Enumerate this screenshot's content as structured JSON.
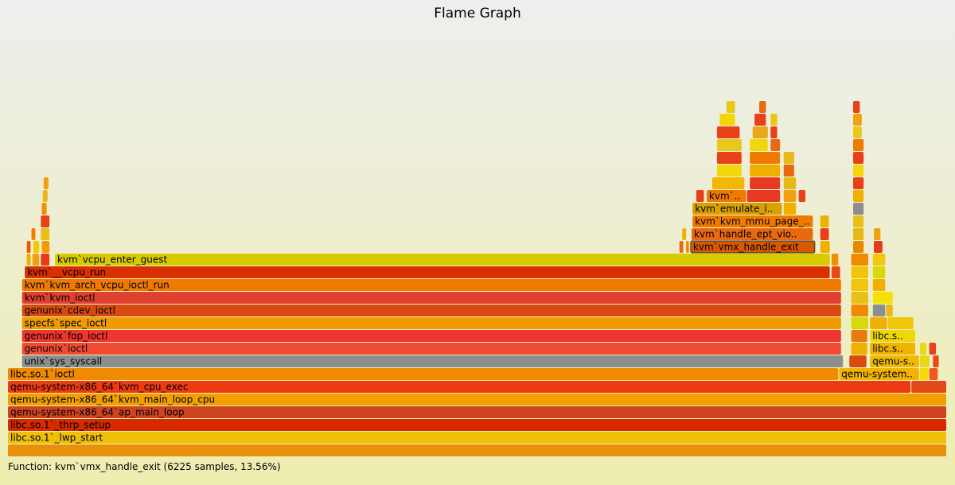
{
  "title": "Flame Graph",
  "details": "Function: kvm`vmx_handle_exit (6225 samples, 13.56%)",
  "chart_data": {
    "type": "flamegraph",
    "title": "Flame Graph",
    "total_samples": 45900,
    "highlighted": "kvm`vmx_handle_exit",
    "frames": [
      {
        "label": "",
        "start": 0.0,
        "end": 1.0,
        "depth": 0,
        "color": "#e8900a"
      },
      {
        "label": "libc.so.1`_lwp_start",
        "start": 0.0,
        "end": 1.0,
        "depth": 1,
        "color": "#edc00a"
      },
      {
        "label": "libc.so.1`_thrp_setup",
        "start": 0.0,
        "end": 1.0,
        "depth": 2,
        "color": "#d82a00"
      },
      {
        "label": "qemu-system-x86_64`ap_main_loop",
        "start": 0.0,
        "end": 1.0,
        "depth": 3,
        "color": "#cc4420"
      },
      {
        "label": "qemu-system-x86_64`kvm_main_loop_cpu",
        "start": 0.0,
        "end": 1.0,
        "depth": 4,
        "color": "#f2a000"
      },
      {
        "label": "qemu-system-x86_64`kvm_cpu_exec",
        "start": 0.0,
        "end": 0.962,
        "depth": 5,
        "color": "#ee3a10"
      },
      {
        "label": "",
        "start": 0.962,
        "end": 1.0,
        "depth": 5,
        "color": "#e24818"
      },
      {
        "label": "libc.so.1`ioctl",
        "start": 0.0,
        "end": 0.885,
        "depth": 6,
        "color": "#f08a00"
      },
      {
        "label": "qemu-system..",
        "start": 0.885,
        "end": 0.971,
        "depth": 6,
        "color": "#f0b400"
      },
      {
        "label": "",
        "start": 0.971,
        "end": 0.981,
        "depth": 6,
        "color": "#f5da0a"
      },
      {
        "label": "",
        "start": 0.981,
        "end": 0.991,
        "depth": 6,
        "color": "#f05a20"
      },
      {
        "label": "unix`sys_syscall",
        "start": 0.015,
        "end": 0.89,
        "depth": 7,
        "color": "#8e8e8e"
      },
      {
        "label": "",
        "start": 0.896,
        "end": 0.915,
        "depth": 7,
        "color": "#d84a10"
      },
      {
        "label": "qemu-sy..",
        "start": 0.918,
        "end": 0.971,
        "depth": 7,
        "color": "#f0b800"
      },
      {
        "label": "",
        "start": 0.971,
        "end": 0.982,
        "depth": 7,
        "color": "#e8d818"
      },
      {
        "label": "",
        "start": 0.985,
        "end": 0.992,
        "depth": 7,
        "color": "#e84a18"
      },
      {
        "label": "genunix`ioctl",
        "start": 0.015,
        "end": 0.888,
        "depth": 8,
        "color": "#f04a34"
      },
      {
        "label": "",
        "start": 0.898,
        "end": 0.916,
        "depth": 8,
        "color": "#f0b000"
      },
      {
        "label": "libc.s..",
        "start": 0.918,
        "end": 0.967,
        "depth": 8,
        "color": "#f0b400"
      },
      {
        "label": "",
        "start": 0.971,
        "end": 0.979,
        "depth": 8,
        "color": "#e8d818"
      },
      {
        "label": "",
        "start": 0.981,
        "end": 0.989,
        "depth": 8,
        "color": "#e84018"
      },
      {
        "label": "genunix`fop_ioctl",
        "start": 0.015,
        "end": 0.888,
        "depth": 9,
        "color": "#ee3530"
      },
      {
        "label": "",
        "start": 0.898,
        "end": 0.916,
        "depth": 9,
        "color": "#e87a10"
      },
      {
        "label": "libc.s..",
        "start": 0.918,
        "end": 0.967,
        "depth": 9,
        "color": "#eed80a"
      },
      {
        "label": "specfs`spec_ioctl",
        "start": 0.015,
        "end": 0.888,
        "depth": 10,
        "color": "#f09c00"
      },
      {
        "label": "",
        "start": 0.898,
        "end": 0.917,
        "depth": 10,
        "color": "#d8d80a"
      },
      {
        "label": "",
        "start": 0.918,
        "end": 0.937,
        "depth": 10,
        "color": "#f0b000"
      },
      {
        "label": "",
        "start": 0.937,
        "end": 0.965,
        "depth": 10,
        "color": "#f2c40a"
      },
      {
        "label": "genunix`cdev_ioctl",
        "start": 0.015,
        "end": 0.888,
        "depth": 11,
        "color": "#d84a10"
      },
      {
        "label": "",
        "start": 0.898,
        "end": 0.917,
        "depth": 11,
        "color": "#f08a00"
      },
      {
        "label": "",
        "start": 0.921,
        "end": 0.935,
        "depth": 11,
        "color": "#8e8e8e"
      },
      {
        "label": "",
        "start": 0.935,
        "end": 0.943,
        "depth": 11,
        "color": "#e8b818"
      },
      {
        "label": "kvm`kvm_ioctl",
        "start": 0.015,
        "end": 0.888,
        "depth": 12,
        "color": "#e04030"
      },
      {
        "label": "",
        "start": 0.898,
        "end": 0.917,
        "depth": 12,
        "color": "#e8c018"
      },
      {
        "label": "",
        "start": 0.921,
        "end": 0.943,
        "depth": 12,
        "color": "#f5e00a"
      },
      {
        "label": "kvm`kvm_arch_vcpu_ioctl_run",
        "start": 0.015,
        "end": 0.888,
        "depth": 13,
        "color": "#f07a00"
      },
      {
        "label": "",
        "start": 0.898,
        "end": 0.917,
        "depth": 13,
        "color": "#f2c40a"
      },
      {
        "label": "",
        "start": 0.921,
        "end": 0.935,
        "depth": 13,
        "color": "#f0b000"
      },
      {
        "label": "kvm`__vcpu_run",
        "start": 0.018,
        "end": 0.876,
        "depth": 14,
        "color": "#d83000"
      },
      {
        "label": "",
        "start": 0.877,
        "end": 0.887,
        "depth": 14,
        "color": "#e84818"
      },
      {
        "label": "",
        "start": 0.898,
        "end": 0.917,
        "depth": 14,
        "color": "#f2c40a"
      },
      {
        "label": "",
        "start": 0.921,
        "end": 0.935,
        "depth": 14,
        "color": "#d8d80a"
      },
      {
        "label": "",
        "start": 0.02,
        "end": 0.025,
        "depth": 15,
        "color": "#f0b000"
      },
      {
        "label": "",
        "start": 0.026,
        "end": 0.034,
        "depth": 15,
        "color": "#f0a010"
      },
      {
        "label": "",
        "start": 0.035,
        "end": 0.045,
        "depth": 15,
        "color": "#e83a18"
      },
      {
        "label": "kvm`vcpu_enter_guest",
        "start": 0.05,
        "end": 0.876,
        "depth": 15,
        "color": "#d8cc00"
      },
      {
        "label": "",
        "start": 0.877,
        "end": 0.885,
        "depth": 15,
        "color": "#f09000"
      },
      {
        "label": "",
        "start": 0.898,
        "end": 0.917,
        "depth": 15,
        "color": "#f08a00"
      },
      {
        "label": "",
        "start": 0.921,
        "end": 0.935,
        "depth": 15,
        "color": "#f0c810"
      },
      {
        "label": "",
        "start": 0.02,
        "end": 0.025,
        "depth": 16,
        "color": "#e85a10"
      },
      {
        "label": "",
        "start": 0.027,
        "end": 0.034,
        "depth": 16,
        "color": "#f0c800"
      },
      {
        "label": "",
        "start": 0.036,
        "end": 0.045,
        "depth": 16,
        "color": "#f09c00"
      },
      {
        "label": "",
        "start": 0.715,
        "end": 0.72,
        "depth": 16,
        "color": "#e86a10"
      },
      {
        "label": "",
        "start": 0.722,
        "end": 0.726,
        "depth": 16,
        "color": "#f08a00"
      },
      {
        "label": "kvm`vmx_handle_exit",
        "start": 0.727,
        "end": 0.86,
        "depth": 16,
        "color": "#d85a00",
        "highlight": true
      },
      {
        "label": "",
        "start": 0.865,
        "end": 0.876,
        "depth": 16,
        "color": "#f0b000"
      },
      {
        "label": "",
        "start": 0.9,
        "end": 0.912,
        "depth": 16,
        "color": "#e88a00"
      },
      {
        "label": "",
        "start": 0.922,
        "end": 0.932,
        "depth": 16,
        "color": "#e83a18"
      },
      {
        "label": "",
        "start": 0.025,
        "end": 0.03,
        "depth": 17,
        "color": "#f07a00"
      },
      {
        "label": "",
        "start": 0.035,
        "end": 0.045,
        "depth": 17,
        "color": "#e8c018"
      },
      {
        "label": "",
        "start": 0.718,
        "end": 0.723,
        "depth": 17,
        "color": "#f0b000"
      },
      {
        "label": "kvm`handle_ept_vio..",
        "start": 0.728,
        "end": 0.858,
        "depth": 17,
        "color": "#e86a10"
      },
      {
        "label": "",
        "start": 0.865,
        "end": 0.875,
        "depth": 17,
        "color": "#e84018"
      },
      {
        "label": "",
        "start": 0.9,
        "end": 0.912,
        "depth": 17,
        "color": "#e8b818"
      },
      {
        "label": "",
        "start": 0.922,
        "end": 0.93,
        "depth": 17,
        "color": "#f0a010"
      },
      {
        "label": "",
        "start": 0.035,
        "end": 0.045,
        "depth": 18,
        "color": "#e84018"
      },
      {
        "label": "kvm`kvm_mmu_page_..",
        "start": 0.729,
        "end": 0.858,
        "depth": 18,
        "color": "#f07a00"
      },
      {
        "label": "",
        "start": 0.865,
        "end": 0.875,
        "depth": 18,
        "color": "#f0b000"
      },
      {
        "label": "",
        "start": 0.9,
        "end": 0.912,
        "depth": 18,
        "color": "#e8c018"
      },
      {
        "label": "",
        "start": 0.036,
        "end": 0.042,
        "depth": 19,
        "color": "#f09000"
      },
      {
        "label": "kvm`emulate_i..",
        "start": 0.729,
        "end": 0.825,
        "depth": 19,
        "color": "#d8a000"
      },
      {
        "label": "",
        "start": 0.826,
        "end": 0.84,
        "depth": 19,
        "color": "#f0b000"
      },
      {
        "label": "",
        "start": 0.9,
        "end": 0.912,
        "depth": 19,
        "color": "#8e8e8e"
      },
      {
        "label": "",
        "start": 0.037,
        "end": 0.043,
        "depth": 20,
        "color": "#e8b818"
      },
      {
        "label": "",
        "start": 0.733,
        "end": 0.742,
        "depth": 20,
        "color": "#e84018"
      },
      {
        "label": "kvm`x8",
        "start": 0.744,
        "end": 0.787,
        "depth": 20,
        "color": "#f07a00"
      },
      {
        "label": "",
        "start": 0.787,
        "end": 0.823,
        "depth": 20,
        "color": "#e83a20"
      },
      {
        "label": "",
        "start": 0.826,
        "end": 0.84,
        "depth": 20,
        "color": "#f0a010"
      },
      {
        "label": "",
        "start": 0.842,
        "end": 0.85,
        "depth": 20,
        "color": "#e84018"
      },
      {
        "label": "",
        "start": 0.9,
        "end": 0.912,
        "depth": 20,
        "color": "#f0b000"
      },
      {
        "label": "",
        "start": 0.038,
        "end": 0.044,
        "depth": 21,
        "color": "#f0a010"
      },
      {
        "label": "",
        "start": 0.75,
        "end": 0.785,
        "depth": 21,
        "color": "#f0b800"
      },
      {
        "label": "",
        "start": 0.79,
        "end": 0.823,
        "depth": 21,
        "color": "#e83a20"
      },
      {
        "label": "",
        "start": 0.826,
        "end": 0.84,
        "depth": 21,
        "color": "#e8b818"
      },
      {
        "label": "",
        "start": 0.9,
        "end": 0.912,
        "depth": 21,
        "color": "#e84018"
      },
      {
        "label": "",
        "start": 0.755,
        "end": 0.782,
        "depth": 22,
        "color": "#f2d80a"
      },
      {
        "label": "",
        "start": 0.79,
        "end": 0.823,
        "depth": 22,
        "color": "#f0b000"
      },
      {
        "label": "",
        "start": 0.826,
        "end": 0.838,
        "depth": 22,
        "color": "#e86a10"
      },
      {
        "label": "",
        "start": 0.9,
        "end": 0.912,
        "depth": 22,
        "color": "#f2d80a"
      },
      {
        "label": "",
        "start": 0.755,
        "end": 0.782,
        "depth": 23,
        "color": "#e84018"
      },
      {
        "label": "",
        "start": 0.79,
        "end": 0.823,
        "depth": 23,
        "color": "#f07a00"
      },
      {
        "label": "",
        "start": 0.826,
        "end": 0.838,
        "depth": 23,
        "color": "#e8b818"
      },
      {
        "label": "",
        "start": 0.9,
        "end": 0.912,
        "depth": 23,
        "color": "#e84018"
      },
      {
        "label": "",
        "start": 0.755,
        "end": 0.782,
        "depth": 24,
        "color": "#e8c818"
      },
      {
        "label": "",
        "start": 0.79,
        "end": 0.81,
        "depth": 24,
        "color": "#f2d80a"
      },
      {
        "label": "",
        "start": 0.812,
        "end": 0.823,
        "depth": 24,
        "color": "#e86a10"
      },
      {
        "label": "",
        "start": 0.9,
        "end": 0.912,
        "depth": 24,
        "color": "#f07a00"
      },
      {
        "label": "",
        "start": 0.755,
        "end": 0.78,
        "depth": 25,
        "color": "#e84018"
      },
      {
        "label": "",
        "start": 0.793,
        "end": 0.81,
        "depth": 25,
        "color": "#e8a818"
      },
      {
        "label": "",
        "start": 0.812,
        "end": 0.82,
        "depth": 25,
        "color": "#e84018"
      },
      {
        "label": "",
        "start": 0.9,
        "end": 0.91,
        "depth": 25,
        "color": "#e8c818"
      },
      {
        "label": "",
        "start": 0.758,
        "end": 0.775,
        "depth": 26,
        "color": "#f2d80a"
      },
      {
        "label": "",
        "start": 0.795,
        "end": 0.808,
        "depth": 26,
        "color": "#e84018"
      },
      {
        "label": "",
        "start": 0.812,
        "end": 0.82,
        "depth": 26,
        "color": "#e8c818"
      },
      {
        "label": "",
        "start": 0.9,
        "end": 0.91,
        "depth": 26,
        "color": "#f0a010"
      },
      {
        "label": "",
        "start": 0.765,
        "end": 0.775,
        "depth": 27,
        "color": "#e8c818"
      },
      {
        "label": "",
        "start": 0.8,
        "end": 0.808,
        "depth": 27,
        "color": "#e86a10"
      },
      {
        "label": "",
        "start": 0.9,
        "end": 0.908,
        "depth": 27,
        "color": "#e84018"
      }
    ]
  }
}
